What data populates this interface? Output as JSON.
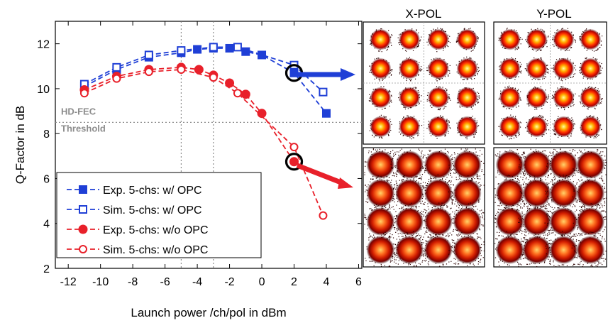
{
  "chart_data": {
    "type": "line",
    "xlabel": "Launch power /ch/pol in dBm",
    "ylabel": "Q-Factor in dB",
    "xlim": [
      -12.8,
      6.2
    ],
    "ylim": [
      2,
      13
    ],
    "xticks": [
      -12,
      -10,
      -8,
      -6,
      -4,
      -2,
      0,
      2,
      4,
      6
    ],
    "yticks": [
      2,
      4,
      6,
      8,
      10,
      12
    ],
    "xtick_labels": [
      "-12",
      "-10",
      "-8",
      "-6",
      "-4",
      "-2",
      "0",
      "2",
      "4",
      "6"
    ],
    "ytick_labels": [
      "2",
      "4",
      "6",
      "8",
      "10",
      "12"
    ],
    "grid": false,
    "vertical_reference_lines": [
      -5,
      -3
    ],
    "threshold": {
      "value": 8.5,
      "label_line1": "HD-FEC",
      "label_line2": "Threshold",
      "color": "#8c8c8c"
    },
    "legend_position": "bottom-left",
    "series": [
      {
        "name": "Exp. 5-chs: w/ OPC",
        "color": "#1f3fd6",
        "marker": "filled-square",
        "linestyle": "dashed",
        "x": [
          -11,
          -9,
          -7,
          -5,
          -4,
          -3,
          -2,
          -1,
          0,
          2,
          4
        ],
        "y": [
          10.1,
          10.85,
          11.4,
          11.6,
          11.75,
          11.8,
          11.8,
          11.65,
          11.5,
          10.7,
          8.9
        ]
      },
      {
        "name": "Sim. 5-chs: w/ OPC",
        "color": "#1f3fd6",
        "marker": "open-square",
        "linestyle": "dashed",
        "x": [
          -11,
          -9,
          -7,
          -5,
          -3,
          -1.5,
          2,
          3.8
        ],
        "y": [
          10.2,
          10.95,
          11.5,
          11.7,
          11.85,
          11.85,
          11.05,
          9.85
        ]
      },
      {
        "name": "Exp. 5-chs: w/o OPC",
        "color": "#e8202a",
        "marker": "filled-circle",
        "linestyle": "dashed",
        "x": [
          -11,
          -9,
          -7,
          -5,
          -3.9,
          -3,
          -2,
          -1,
          0,
          2
        ],
        "y": [
          9.95,
          10.55,
          10.85,
          10.95,
          10.85,
          10.6,
          10.25,
          9.75,
          8.9,
          6.75
        ]
      },
      {
        "name": "Sim. 5-chs: w/o OPC",
        "color": "#e8202a",
        "marker": "open-circle",
        "linestyle": "dashed",
        "x": [
          -11,
          -9,
          -7,
          -5,
          -3,
          -1.5,
          2,
          3.8
        ],
        "y": [
          9.8,
          10.45,
          10.75,
          10.85,
          10.5,
          9.8,
          7.4,
          4.35
        ]
      }
    ],
    "highlighted_points": [
      {
        "x": 2,
        "y": 10.7
      },
      {
        "x": 2,
        "y": 6.75
      }
    ]
  },
  "constellations": {
    "column_titles": [
      "X-POL",
      "Y-POL"
    ],
    "panels": [
      {
        "name": "w/ OPC",
        "row": "top",
        "spread": "tight"
      },
      {
        "name": "w/o OPC",
        "row": "bottom",
        "spread": "wide"
      }
    ]
  }
}
